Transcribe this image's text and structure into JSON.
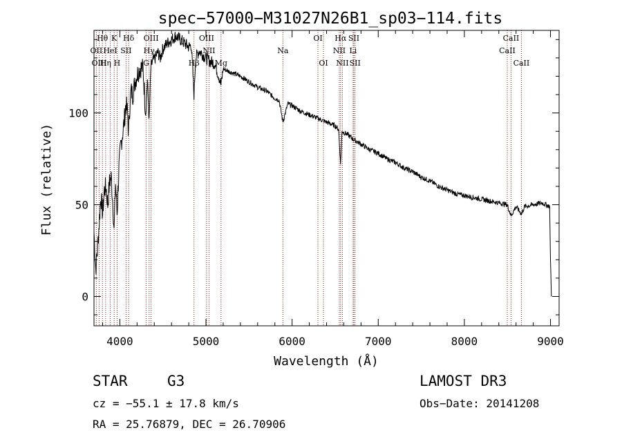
{
  "chart_data": {
    "type": "line",
    "title": "spec−57000−M31027N26B1_sp03−114.fits",
    "xlabel": "Wavelength (Å)",
    "ylabel": "Flux (relative)",
    "xlim": [
      3700,
      9100
    ],
    "ylim": [
      -16,
      145
    ],
    "xticks": [
      4000,
      5000,
      6000,
      7000,
      8000,
      9000
    ],
    "yticks": [
      0,
      50,
      100
    ],
    "grid": false,
    "series": [
      {
        "name": "spectrum",
        "x": [
          3700,
          3720,
          3740,
          3760,
          3780,
          3800,
          3820,
          3840,
          3860,
          3880,
          3900,
          3920,
          3933,
          3950,
          3968,
          3990,
          4010,
          4030,
          4050,
          4070,
          4090,
          4101,
          4110,
          4130,
          4150,
          4180,
          4210,
          4240,
          4270,
          4300,
          4320,
          4340,
          4360,
          4380,
          4410,
          4440,
          4470,
          4500,
          4550,
          4600,
          4650,
          4700,
          4750,
          4800,
          4830,
          4861,
          4880,
          4920,
          4960,
          5000,
          5050,
          5100,
          5150,
          5175,
          5200,
          5300,
          5400,
          5500,
          5600,
          5700,
          5800,
          5850,
          5893,
          5950,
          6000,
          6100,
          6200,
          6300,
          6400,
          6500,
          6540,
          6563,
          6580,
          6650,
          6700,
          6800,
          6900,
          7000,
          7100,
          7200,
          7300,
          7400,
          7500,
          7600,
          7700,
          7800,
          7900,
          8000,
          8100,
          8200,
          8300,
          8400,
          8498,
          8520,
          8542,
          8600,
          8662,
          8700,
          8800,
          8900,
          8950,
          8990,
          9000,
          9010
        ],
        "y": [
          35,
          15,
          25,
          40,
          55,
          45,
          58,
          60,
          50,
          62,
          65,
          50,
          35,
          62,
          45,
          70,
          82,
          88,
          95,
          105,
          100,
          88,
          100,
          112,
          110,
          118,
          122,
          125,
          124,
          100,
          118,
          95,
          125,
          128,
          130,
          133,
          130,
          135,
          138,
          140,
          142,
          140,
          138,
          136,
          137,
          110,
          130,
          134,
          132,
          130,
          128,
          127,
          120,
          115,
          124,
          122,
          120,
          117,
          114,
          112,
          108,
          107,
          95,
          105,
          104,
          101,
          99,
          97,
          95,
          93,
          91,
          72,
          90,
          88,
          86,
          83,
          80,
          78,
          75,
          73,
          70,
          68,
          65,
          63,
          60,
          58,
          56,
          55,
          54,
          53,
          52,
          51,
          50,
          47,
          44,
          49,
          45,
          49,
          50,
          51,
          50,
          49,
          20,
          0
        ]
      }
    ],
    "lines": [
      {
        "label": "Hθ",
        "wavelength": 3798,
        "row": 0
      },
      {
        "label": "K",
        "wavelength": 3934,
        "row": 0
      },
      {
        "label": "Hδ",
        "wavelength": 4102,
        "row": 0
      },
      {
        "label": "OIII",
        "wavelength": 4363,
        "row": 0
      },
      {
        "label": "OIII",
        "wavelength": 5007,
        "row": 0
      },
      {
        "label": "OI",
        "wavelength": 6300,
        "row": 0
      },
      {
        "label": "Hα",
        "wavelength": 6563,
        "row": 0
      },
      {
        "label": "SII",
        "wavelength": 6717,
        "row": 0
      },
      {
        "label": "CaII",
        "wavelength": 8542,
        "row": 0
      },
      {
        "label": "OII",
        "wavelength": 3727,
        "row": 1
      },
      {
        "label": "HeI",
        "wavelength": 3889,
        "row": 1
      },
      {
        "label": "SII",
        "wavelength": 4072,
        "row": 1
      },
      {
        "label": "Hγ",
        "wavelength": 4340,
        "row": 1
      },
      {
        "label": "NII",
        "wavelength": 5035,
        "row": 1
      },
      {
        "label": "Na",
        "wavelength": 5893,
        "row": 1
      },
      {
        "label": "NII",
        "wavelength": 6548,
        "row": 1
      },
      {
        "label": "Li",
        "wavelength": 6708,
        "row": 1
      },
      {
        "label": "CaII",
        "wavelength": 8498,
        "row": 1
      },
      {
        "label": "OIII",
        "wavelength": 3760,
        "row": 2
      },
      {
        "label": "Hη",
        "wavelength": 3835,
        "row": 2
      },
      {
        "label": "H",
        "wavelength": 3968,
        "row": 2
      },
      {
        "label": "G",
        "wavelength": 4305,
        "row": 2
      },
      {
        "label": "Hβ",
        "wavelength": 4861,
        "row": 2
      },
      {
        "label": "Mg",
        "wavelength": 5175,
        "row": 2
      },
      {
        "label": "OI",
        "wavelength": 6364,
        "row": 2
      },
      {
        "label": "NII",
        "wavelength": 6584,
        "row": 2
      },
      {
        "label": "SII",
        "wavelength": 6731,
        "row": 2
      },
      {
        "label": "CaII",
        "wavelength": 8662,
        "row": 2
      }
    ]
  },
  "info": {
    "object_class": "STAR",
    "subclass": "G3",
    "survey": "LAMOST DR3",
    "cz": "cz = −55.1 ± 17.8 km/s",
    "obs_date": "Obs−Date: 20141208",
    "coords": "RA =  25.76879, DEC =  26.70906"
  },
  "colors": {
    "spectrum": "#000000",
    "line_markers": "#8b1a1a",
    "text": "#000000"
  }
}
